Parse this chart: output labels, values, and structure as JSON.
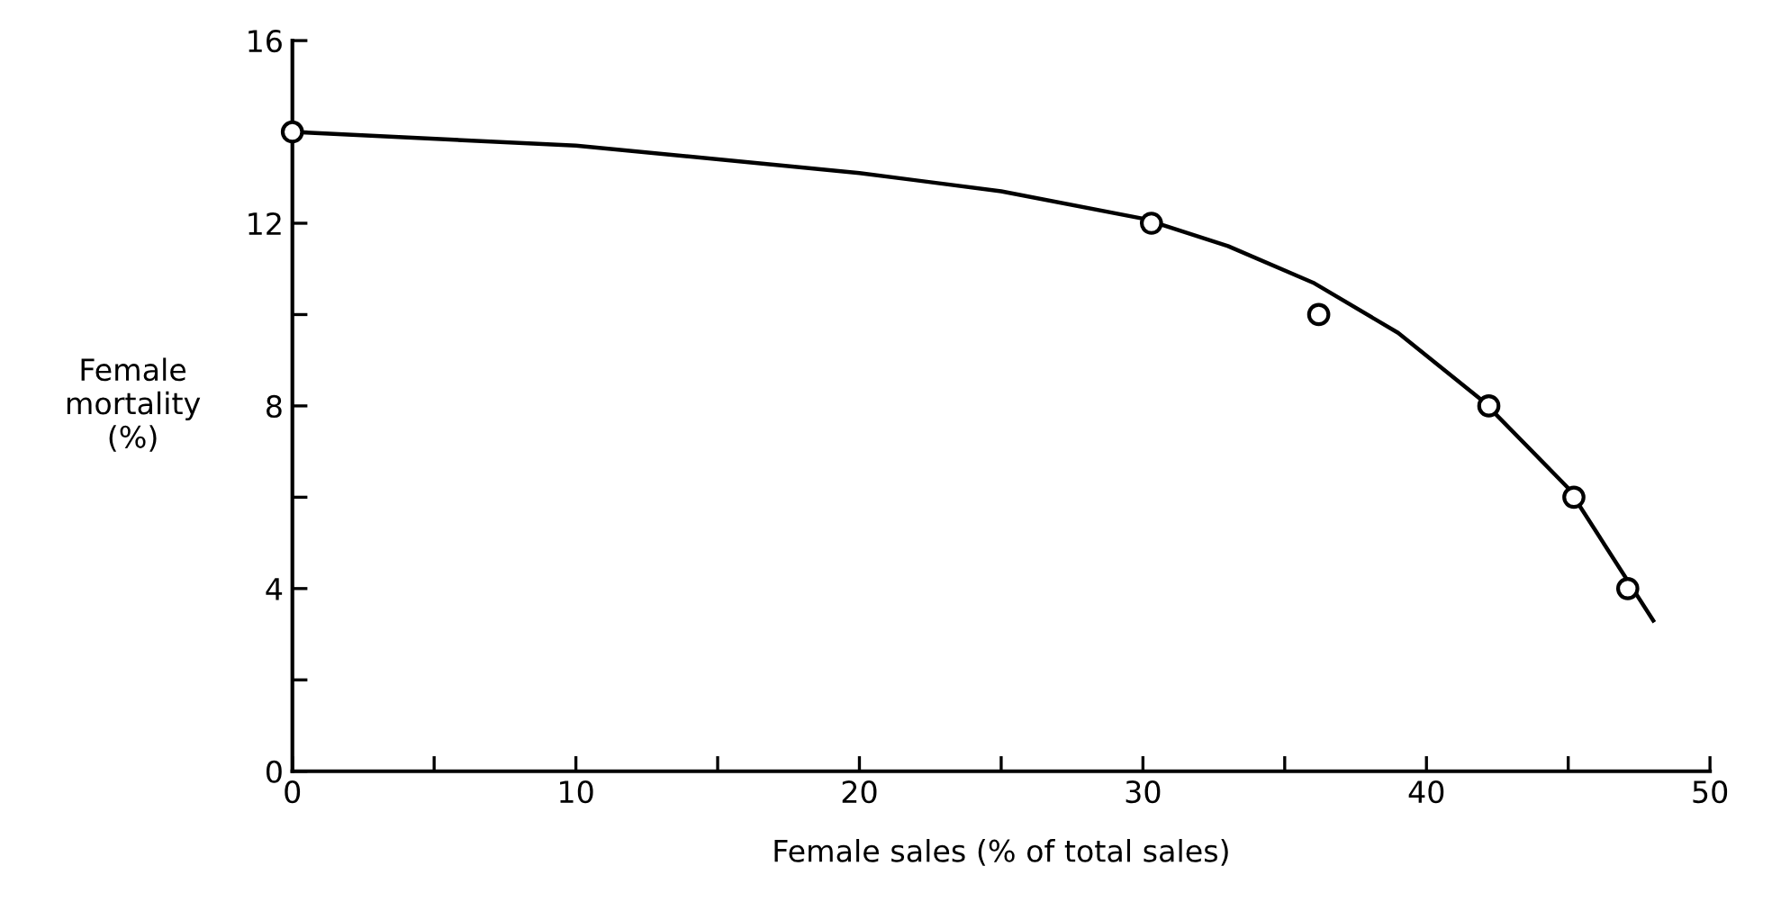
{
  "chart_data": {
    "type": "scatter",
    "xlabel": "Female sales (% of total sales)",
    "ylabel": "Female\nmortality\n(%)",
    "x": [
      0,
      30.3,
      36.2,
      42.2,
      45.2,
      47.1
    ],
    "series": [
      {
        "color": "#000000",
        "marker": "circle",
        "values": [
          14,
          12,
          10,
          8,
          6,
          4
        ]
      },
      {
        "type": "line",
        "color": "#000000",
        "marker": "none",
        "line_style": "solid",
        "x": [
          0,
          10,
          20,
          25,
          30,
          33,
          36,
          39,
          42,
          45,
          48
        ],
        "values": [
          14,
          13.7,
          13.1,
          12.7,
          12.1,
          11.5,
          10.7,
          9.6,
          8.1,
          6.2,
          3.3
        ]
      }
    ],
    "xlim": [
      0,
      50
    ],
    "ylim": [
      0,
      16
    ],
    "xticks": [
      0,
      {
        "value": 5,
        "label": null
      },
      10,
      {
        "value": 15,
        "label": null
      },
      20,
      {
        "value": 25,
        "label": null
      },
      30,
      {
        "value": 35,
        "label": null
      },
      40,
      {
        "value": 45,
        "label": null
      },
      50
    ],
    "yticks": [
      0,
      {
        "value": 2,
        "label": null
      },
      4,
      {
        "value": 6,
        "label": null
      },
      8,
      {
        "value": 10,
        "label": null
      },
      12,
      {
        "value": 14,
        "label": null
      },
      16
    ],
    "grid": false
  }
}
